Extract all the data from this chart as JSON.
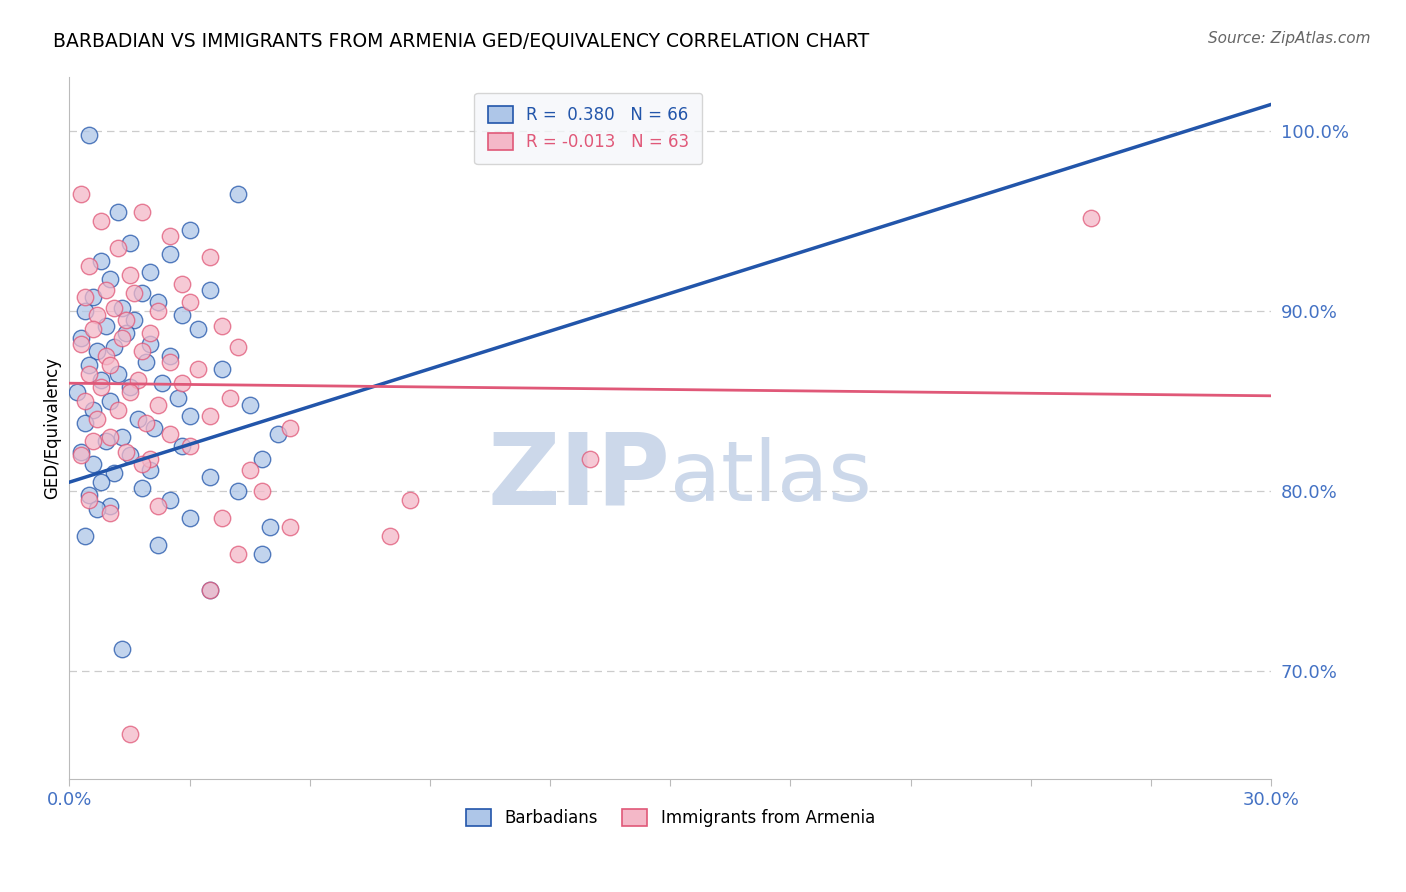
{
  "title": "BARBADIAN VS IMMIGRANTS FROM ARMENIA GED/EQUIVALENCY CORRELATION CHART",
  "source": "Source: ZipAtlas.com",
  "ylabel": "GED/Equivalency",
  "right_yticks": [
    70.0,
    80.0,
    90.0,
    100.0
  ],
  "xmin": 0.0,
  "xmax": 30.0,
  "ymin": 64.0,
  "ymax": 103.0,
  "blue_R": 0.38,
  "blue_N": 66,
  "pink_R": -0.013,
  "pink_N": 63,
  "blue_color": "#aec6e8",
  "pink_color": "#f4b8c8",
  "blue_line_color": "#2255aa",
  "pink_line_color": "#e05878",
  "blue_trend_x": [
    0.0,
    30.0
  ],
  "blue_trend_y": [
    80.5,
    101.5
  ],
  "pink_trend_x": [
    0.0,
    30.0
  ],
  "pink_trend_y": [
    86.0,
    85.3
  ],
  "blue_scatter": [
    [
      0.5,
      99.8
    ],
    [
      4.2,
      96.5
    ],
    [
      1.2,
      95.5
    ],
    [
      3.0,
      94.5
    ],
    [
      1.5,
      93.8
    ],
    [
      2.5,
      93.2
    ],
    [
      0.8,
      92.8
    ],
    [
      2.0,
      92.2
    ],
    [
      1.0,
      91.8
    ],
    [
      3.5,
      91.2
    ],
    [
      1.8,
      91.0
    ],
    [
      0.6,
      90.8
    ],
    [
      2.2,
      90.5
    ],
    [
      1.3,
      90.2
    ],
    [
      0.4,
      90.0
    ],
    [
      2.8,
      89.8
    ],
    [
      1.6,
      89.5
    ],
    [
      0.9,
      89.2
    ],
    [
      3.2,
      89.0
    ],
    [
      1.4,
      88.8
    ],
    [
      0.3,
      88.5
    ],
    [
      2.0,
      88.2
    ],
    [
      1.1,
      88.0
    ],
    [
      0.7,
      87.8
    ],
    [
      2.5,
      87.5
    ],
    [
      1.9,
      87.2
    ],
    [
      0.5,
      87.0
    ],
    [
      3.8,
      86.8
    ],
    [
      1.2,
      86.5
    ],
    [
      0.8,
      86.2
    ],
    [
      2.3,
      86.0
    ],
    [
      1.5,
      85.8
    ],
    [
      0.2,
      85.5
    ],
    [
      2.7,
      85.2
    ],
    [
      1.0,
      85.0
    ],
    [
      4.5,
      84.8
    ],
    [
      0.6,
      84.5
    ],
    [
      3.0,
      84.2
    ],
    [
      1.7,
      84.0
    ],
    [
      0.4,
      83.8
    ],
    [
      2.1,
      83.5
    ],
    [
      5.2,
      83.2
    ],
    [
      1.3,
      83.0
    ],
    [
      0.9,
      82.8
    ],
    [
      2.8,
      82.5
    ],
    [
      0.3,
      82.2
    ],
    [
      1.5,
      82.0
    ],
    [
      4.8,
      81.8
    ],
    [
      0.6,
      81.5
    ],
    [
      2.0,
      81.2
    ],
    [
      1.1,
      81.0
    ],
    [
      3.5,
      80.8
    ],
    [
      0.8,
      80.5
    ],
    [
      1.8,
      80.2
    ],
    [
      4.2,
      80.0
    ],
    [
      0.5,
      79.8
    ],
    [
      2.5,
      79.5
    ],
    [
      1.0,
      79.2
    ],
    [
      0.7,
      79.0
    ],
    [
      3.0,
      78.5
    ],
    [
      5.0,
      78.0
    ],
    [
      0.4,
      77.5
    ],
    [
      2.2,
      77.0
    ],
    [
      4.8,
      76.5
    ],
    [
      3.5,
      74.5
    ],
    [
      1.3,
      71.2
    ]
  ],
  "pink_scatter": [
    [
      0.3,
      96.5
    ],
    [
      1.8,
      95.5
    ],
    [
      0.8,
      95.0
    ],
    [
      2.5,
      94.2
    ],
    [
      1.2,
      93.5
    ],
    [
      3.5,
      93.0
    ],
    [
      0.5,
      92.5
    ],
    [
      1.5,
      92.0
    ],
    [
      2.8,
      91.5
    ],
    [
      0.9,
      91.2
    ],
    [
      1.6,
      91.0
    ],
    [
      0.4,
      90.8
    ],
    [
      3.0,
      90.5
    ],
    [
      1.1,
      90.2
    ],
    [
      2.2,
      90.0
    ],
    [
      0.7,
      89.8
    ],
    [
      1.4,
      89.5
    ],
    [
      3.8,
      89.2
    ],
    [
      0.6,
      89.0
    ],
    [
      2.0,
      88.8
    ],
    [
      1.3,
      88.5
    ],
    [
      0.3,
      88.2
    ],
    [
      4.2,
      88.0
    ],
    [
      1.8,
      87.8
    ],
    [
      0.9,
      87.5
    ],
    [
      2.5,
      87.2
    ],
    [
      1.0,
      87.0
    ],
    [
      3.2,
      86.8
    ],
    [
      0.5,
      86.5
    ],
    [
      1.7,
      86.2
    ],
    [
      2.8,
      86.0
    ],
    [
      0.8,
      85.8
    ],
    [
      1.5,
      85.5
    ],
    [
      4.0,
      85.2
    ],
    [
      0.4,
      85.0
    ],
    [
      2.2,
      84.8
    ],
    [
      1.2,
      84.5
    ],
    [
      3.5,
      84.2
    ],
    [
      0.7,
      84.0
    ],
    [
      1.9,
      83.8
    ],
    [
      5.5,
      83.5
    ],
    [
      2.5,
      83.2
    ],
    [
      1.0,
      83.0
    ],
    [
      0.6,
      82.8
    ],
    [
      3.0,
      82.5
    ],
    [
      1.4,
      82.2
    ],
    [
      0.3,
      82.0
    ],
    [
      2.0,
      81.8
    ],
    [
      1.8,
      81.5
    ],
    [
      4.5,
      81.2
    ],
    [
      8.5,
      79.5
    ],
    [
      13.0,
      81.8
    ],
    [
      25.5,
      95.2
    ],
    [
      4.8,
      80.0
    ],
    [
      0.5,
      79.5
    ],
    [
      2.2,
      79.2
    ],
    [
      1.0,
      78.8
    ],
    [
      3.8,
      78.5
    ],
    [
      5.5,
      78.0
    ],
    [
      8.0,
      77.5
    ],
    [
      4.2,
      76.5
    ],
    [
      3.5,
      74.5
    ],
    [
      1.5,
      66.5
    ]
  ],
  "watermark_color": "#ccd8ea",
  "legend_box_color": "#f5f7fa",
  "title_fontsize": 13.5,
  "axis_tick_color": "#4472c4",
  "grid_color": "#cccccc"
}
